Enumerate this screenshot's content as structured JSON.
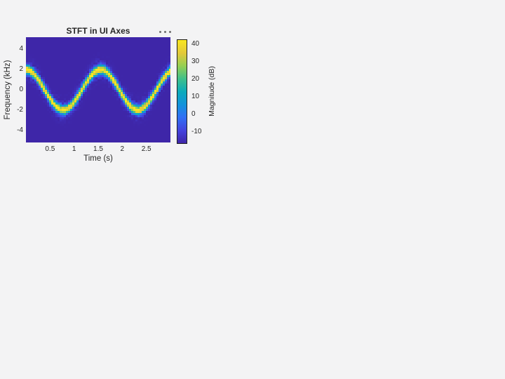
{
  "figure": {
    "background_color": "#f3f3f4",
    "text_color": "#262626",
    "toolbar_dot_color": "#6e6e6e",
    "colorbar_border_color": "#1f1f1f"
  },
  "chart": {
    "title": "STFT in UI Axes",
    "xlabel": "Time (s)",
    "ylabel": "Frequency (kHz)",
    "colorbar_label": "Magnitude (dB)"
  },
  "chart_data": {
    "type": "heatmap",
    "subtype": "stft-spectrogram",
    "title": "STFT in UI Axes",
    "xlabel": "Time (s)",
    "ylabel": "Frequency (kHz)",
    "colorbar_label": "Magnitude (dB)",
    "xlim": [
      0,
      3
    ],
    "ylim": [
      -5.2,
      5.2
    ],
    "clim": [
      -17,
      43
    ],
    "x_ticks": [
      0.5,
      1,
      1.5,
      2,
      2.5
    ],
    "y_ticks": [
      4,
      2,
      0,
      -2,
      -4
    ],
    "colorbar_ticks": [
      40,
      30,
      20,
      10,
      0,
      -10
    ],
    "grid": false,
    "legend": false,
    "colorbar_position": "right",
    "background_db": -17,
    "peak_db": 43,
    "ridge": {
      "description": "instantaneous frequency of sinusoidally frequency-modulated tone",
      "shape": "cosine",
      "amplitude_khz": 2,
      "period_s": 1.55,
      "phase_offset_s": 0,
      "sigma_khz": 0.3,
      "speckle_db": 16,
      "speckle_sigma_khz": 0.6
    },
    "ridge_points": {
      "t_s": [
        0,
        0.25,
        0.5,
        0.75,
        1.0,
        1.25,
        1.5,
        1.75,
        2.0,
        2.25,
        2.5,
        2.75,
        3.0
      ],
      "f_khz": [
        2.0,
        1.06,
        -0.88,
        -1.99,
        -1.22,
        0.69,
        1.96,
        1.38,
        -0.5,
        -1.91,
        -1.52,
        0.3,
        1.84
      ]
    },
    "colormap": "parula",
    "colormap_stops": [
      [
        0.0,
        "#3e26a8"
      ],
      [
        0.12,
        "#4442dc"
      ],
      [
        0.25,
        "#316ff4"
      ],
      [
        0.37,
        "#1392dc"
      ],
      [
        0.5,
        "#0cabbb"
      ],
      [
        0.62,
        "#3dbf8c"
      ],
      [
        0.75,
        "#95cf52"
      ],
      [
        0.87,
        "#e2c83a"
      ],
      [
        1.0,
        "#f9e721"
      ]
    ]
  }
}
